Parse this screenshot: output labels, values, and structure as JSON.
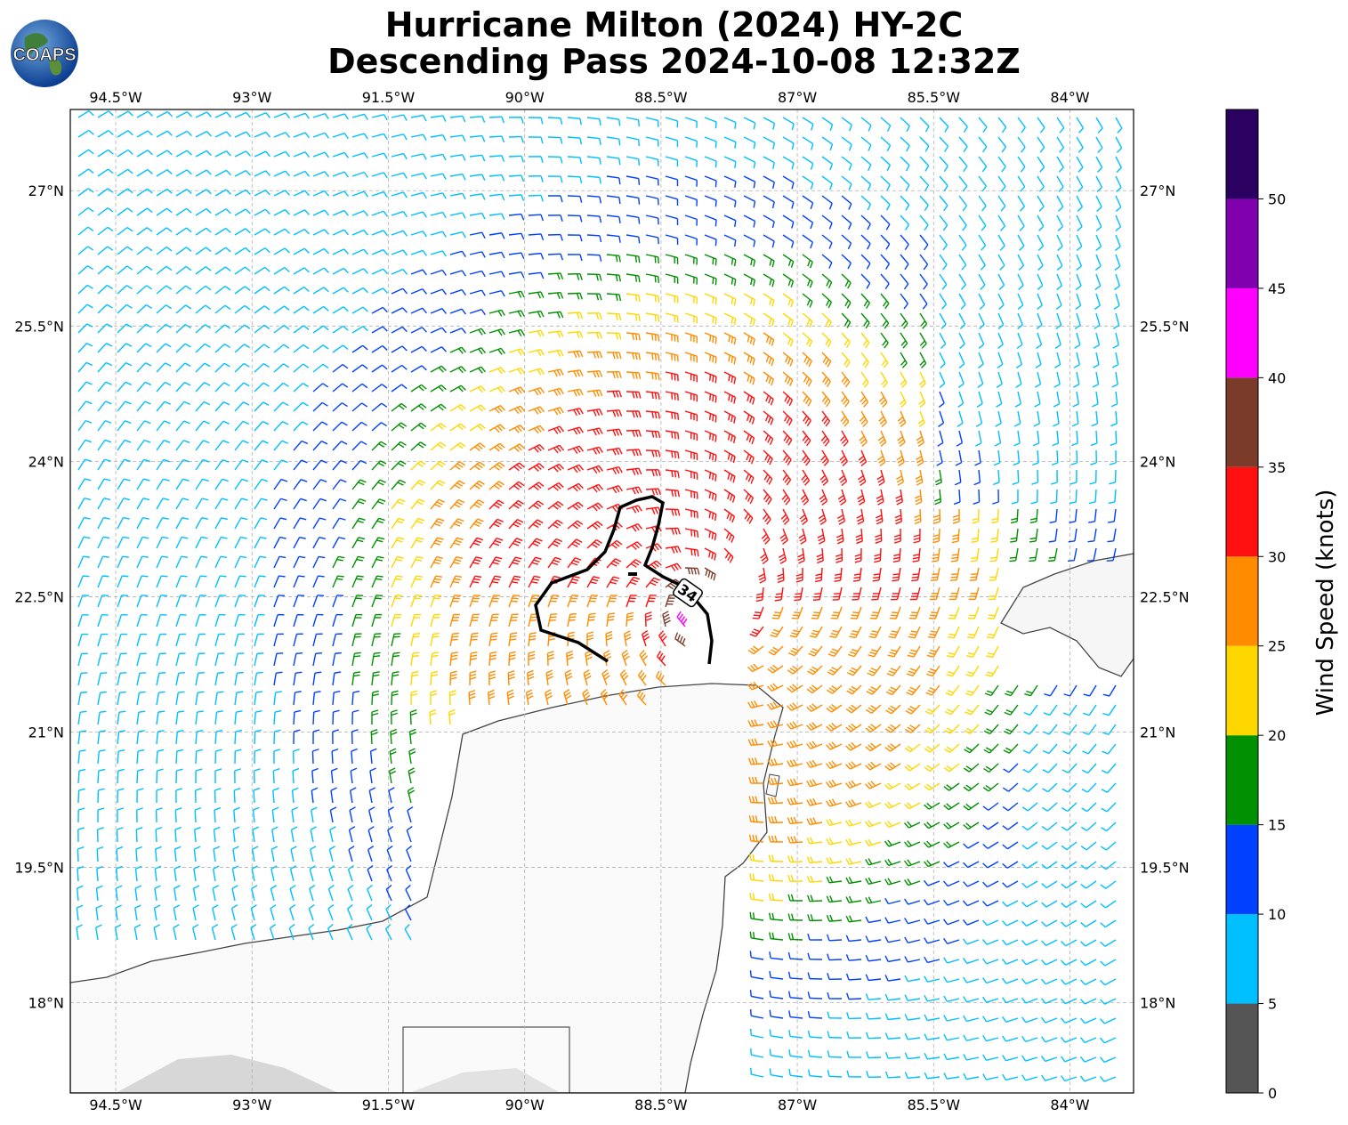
{
  "title": {
    "line1": "Hurricane Milton (2024) HY-2C",
    "line2": "Descending Pass 2024-10-08 12:32Z"
  },
  "logo": {
    "text": "COAPS",
    "icon": "globe-icon"
  },
  "map": {
    "lon_range": [
      -95.0,
      -83.3
    ],
    "lat_range": [
      17.0,
      27.9
    ],
    "lon_ticks": [
      {
        "value": -94.5,
        "label": "94.5°W"
      },
      {
        "value": -93.0,
        "label": "93°W"
      },
      {
        "value": -91.5,
        "label": "91.5°W"
      },
      {
        "value": -90.0,
        "label": "90°W"
      },
      {
        "value": -88.5,
        "label": "88.5°W"
      },
      {
        "value": -87.0,
        "label": "87°W"
      },
      {
        "value": -85.5,
        "label": "85.5°W"
      },
      {
        "value": -84.0,
        "label": "84°W"
      }
    ],
    "lat_ticks": [
      {
        "value": 27.0,
        "label": "27°N"
      },
      {
        "value": 25.5,
        "label": "25.5°N"
      },
      {
        "value": 24.0,
        "label": "24°N"
      },
      {
        "value": 22.5,
        "label": "22.5°N"
      },
      {
        "value": 21.0,
        "label": "21°N"
      },
      {
        "value": 19.5,
        "label": "19.5°N"
      },
      {
        "value": 18.0,
        "label": "18°N"
      }
    ],
    "gridlines": true,
    "storm_center": {
      "lon": -88.1,
      "lat": 22.4
    },
    "contour": {
      "label": "34",
      "color": "#000000"
    }
  },
  "colorbar": {
    "label": "Wind Speed (knots)",
    "bins": [
      {
        "min": 0,
        "max": 5,
        "color": "#555555"
      },
      {
        "min": 5,
        "max": 10,
        "color": "#00bfff"
      },
      {
        "min": 10,
        "max": 15,
        "color": "#0040ff"
      },
      {
        "min": 15,
        "max": 20,
        "color": "#009000"
      },
      {
        "min": 20,
        "max": 25,
        "color": "#ffd700"
      },
      {
        "min": 25,
        "max": 30,
        "color": "#ff8c00"
      },
      {
        "min": 30,
        "max": 35,
        "color": "#ff1010"
      },
      {
        "min": 35,
        "max": 40,
        "color": "#7a3b2a"
      },
      {
        "min": 40,
        "max": 45,
        "color": "#ff00ff"
      },
      {
        "min": 45,
        "max": 50,
        "color": "#8000b0"
      },
      {
        "min": 50,
        "max": 55,
        "color": "#2a0060"
      }
    ],
    "tick_labels": [
      "0",
      "5",
      "10",
      "15",
      "20",
      "25",
      "30",
      "35",
      "40",
      "45",
      "50"
    ]
  }
}
